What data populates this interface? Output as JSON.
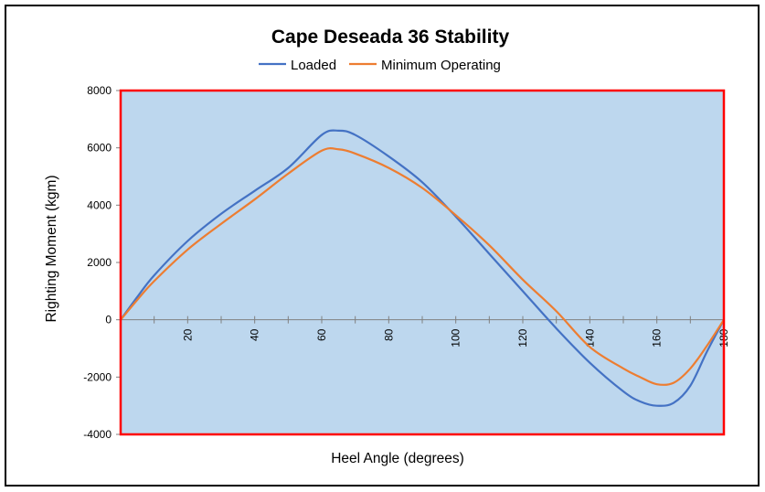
{
  "chart_data": {
    "type": "line",
    "title": "Cape Deseada 36 Stability",
    "xlabel": "Heel Angle (degrees)",
    "ylabel": "Righting Moment (kgm)",
    "xlim": [
      0,
      180
    ],
    "ylim": [
      -4000,
      8000
    ],
    "x_ticks": [
      20,
      40,
      60,
      80,
      100,
      120,
      140,
      160,
      180
    ],
    "y_ticks": [
      -4000,
      -2000,
      0,
      2000,
      4000,
      6000,
      8000
    ],
    "x_minor_step": 10,
    "grid": false,
    "legend_position": "top",
    "plot_background": "#BDD7EE",
    "plot_border": "#FF0000",
    "series": [
      {
        "name": "Loaded",
        "color": "#4472C4",
        "x": [
          0,
          5,
          10,
          20,
          30,
          40,
          50,
          60,
          65,
          70,
          80,
          90,
          100,
          110,
          120,
          130,
          140,
          150,
          155,
          160,
          165,
          170,
          175,
          180
        ],
        "y": [
          0,
          800,
          1550,
          2750,
          3700,
          4500,
          5300,
          6450,
          6600,
          6450,
          5700,
          4800,
          3600,
          2300,
          1000,
          -300,
          -1500,
          -2500,
          -2850,
          -3000,
          -2900,
          -2300,
          -1100,
          0
        ]
      },
      {
        "name": "Minimum Operating",
        "color": "#ED7D31",
        "x": [
          0,
          5,
          10,
          20,
          30,
          40,
          50,
          60,
          65,
          70,
          80,
          90,
          100,
          110,
          120,
          130,
          140,
          150,
          155,
          160,
          165,
          170,
          175,
          180
        ],
        "y": [
          0,
          700,
          1350,
          2450,
          3350,
          4200,
          5100,
          5900,
          5950,
          5800,
          5300,
          4600,
          3650,
          2600,
          1400,
          300,
          -950,
          -1700,
          -2000,
          -2250,
          -2200,
          -1700,
          -900,
          0
        ]
      }
    ]
  }
}
